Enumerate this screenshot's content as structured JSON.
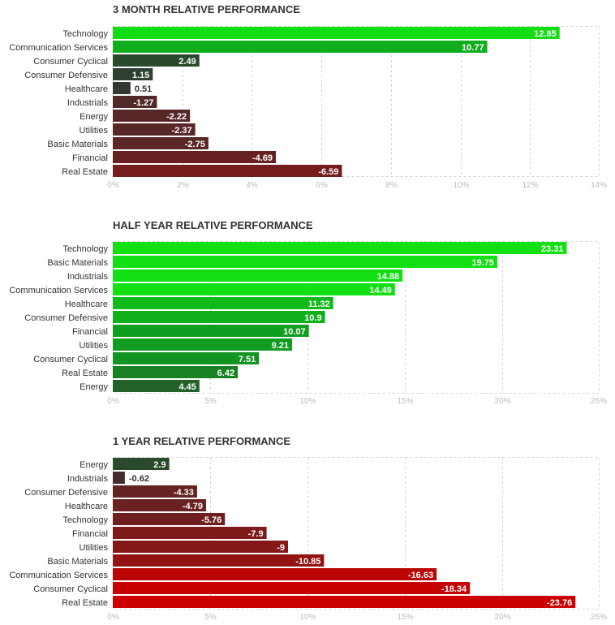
{
  "chart_data": [
    {
      "type": "bar",
      "orientation": "horizontal",
      "title": "3 MONTH RELATIVE PERFORMANCE",
      "categories": [
        "Technology",
        "Communication Services",
        "Consumer Cyclical",
        "Consumer Defensive",
        "Healthcare",
        "Industrials",
        "Energy",
        "Utilities",
        "Basic Materials",
        "Financial",
        "Real Estate"
      ],
      "values": [
        12.85,
        10.77,
        2.49,
        1.15,
        0.51,
        -1.27,
        -2.22,
        -2.37,
        -2.75,
        -4.69,
        -6.59
      ],
      "value_labels": [
        "12.85",
        "10.77",
        "2.49",
        "1.15",
        "0.51",
        "-1.27",
        "-2.22",
        "-2.37",
        "-2.75",
        "-4.69",
        "-6.59"
      ],
      "xlim": [
        0,
        14
      ],
      "ticks": [
        0,
        2,
        4,
        6,
        8,
        10,
        12,
        14
      ],
      "tick_labels": [
        "0%",
        "2%",
        "4%",
        "6%",
        "8%",
        "10%",
        "12%",
        "14%"
      ],
      "xlabel": "",
      "ylabel": "",
      "grid": true
    },
    {
      "type": "bar",
      "orientation": "horizontal",
      "title": "HALF YEAR RELATIVE PERFORMANCE",
      "categories": [
        "Technology",
        "Basic Materials",
        "Industrials",
        "Communication Services",
        "Healthcare",
        "Consumer Defensive",
        "Financial",
        "Utilities",
        "Consumer Cyclical",
        "Real Estate",
        "Energy"
      ],
      "values": [
        23.31,
        19.75,
        14.88,
        14.49,
        11.32,
        10.9,
        10.07,
        9.21,
        7.51,
        6.42,
        4.45
      ],
      "value_labels": [
        "23.31",
        "19.75",
        "14.88",
        "14.49",
        "11.32",
        "10.9",
        "10.07",
        "9.21",
        "7.51",
        "6.42",
        "4.45"
      ],
      "xlim": [
        0,
        25
      ],
      "ticks": [
        0,
        5,
        10,
        15,
        20,
        25
      ],
      "tick_labels": [
        "0%",
        "5%",
        "10%",
        "15%",
        "20%",
        "25%"
      ],
      "xlabel": "",
      "ylabel": "",
      "grid": true
    },
    {
      "type": "bar",
      "orientation": "horizontal",
      "title": "1 YEAR RELATIVE PERFORMANCE",
      "categories": [
        "Energy",
        "Industrials",
        "Consumer Defensive",
        "Healthcare",
        "Technology",
        "Financial",
        "Utilities",
        "Basic Materials",
        "Communication Services",
        "Consumer Cyclical",
        "Real Estate"
      ],
      "values": [
        2.9,
        -0.62,
        -4.33,
        -4.79,
        -5.76,
        -7.9,
        -9,
        -10.85,
        -16.63,
        -18.34,
        -23.76
      ],
      "value_labels": [
        "2.9",
        "-0.62",
        "-4.33",
        "-4.79",
        "-5.76",
        "-7.9",
        "-9",
        "-10.85",
        "-16.63",
        "-18.34",
        "-23.76"
      ],
      "xlim": [
        0,
        25
      ],
      "ticks": [
        0,
        5,
        10,
        15,
        20,
        25
      ],
      "tick_labels": [
        "0%",
        "5%",
        "10%",
        "15%",
        "20%",
        "25%"
      ],
      "xlabel": "",
      "ylabel": "",
      "grid": true
    }
  ],
  "colors": {
    "strong_positive": "#12e012",
    "mid_positive": "#0f9c1f",
    "weak_positive": "#2a4a2c",
    "neutral": "#333333",
    "weak_negative": "#4e2a2a",
    "strong_negative": "#cc0000",
    "grid": "#d4d4d4",
    "tick_label": "#bbbbbb",
    "text": "#333333"
  }
}
